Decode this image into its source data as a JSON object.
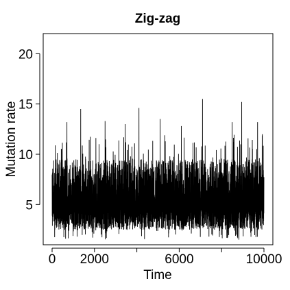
{
  "chart_data": {
    "type": "line",
    "title": "Zig-zag",
    "xlabel": "Time",
    "ylabel": "Mutation rate",
    "xlim": [
      0,
      10000
    ],
    "ylim": [
      1,
      22
    ],
    "x_ticks": [
      0,
      2000,
      6000,
      10000
    ],
    "x_ticks_unlabeled": [
      4000,
      8000
    ],
    "y_ticks": [
      5,
      10,
      15,
      20
    ],
    "grid": false,
    "legend": "none",
    "line_color": "#000000",
    "series": [
      {
        "x_start": 0,
        "x_end": 10000,
        "typical_band": [
          2.5,
          9.5
        ],
        "mean": 5.5,
        "min": 1.5,
        "max": 15.5,
        "peaks": [
          {
            "x": 700,
            "y": 13.2
          },
          {
            "x": 1350,
            "y": 14.5
          },
          {
            "x": 2500,
            "y": 13.3
          },
          {
            "x": 3450,
            "y": 13.0
          },
          {
            "x": 4100,
            "y": 14.6
          },
          {
            "x": 5100,
            "y": 13.5
          },
          {
            "x": 6100,
            "y": 12.8
          },
          {
            "x": 7100,
            "y": 15.5
          },
          {
            "x": 8500,
            "y": 13.2
          },
          {
            "x": 8950,
            "y": 15.2
          },
          {
            "x": 9700,
            "y": 13.2
          }
        ]
      }
    ]
  }
}
